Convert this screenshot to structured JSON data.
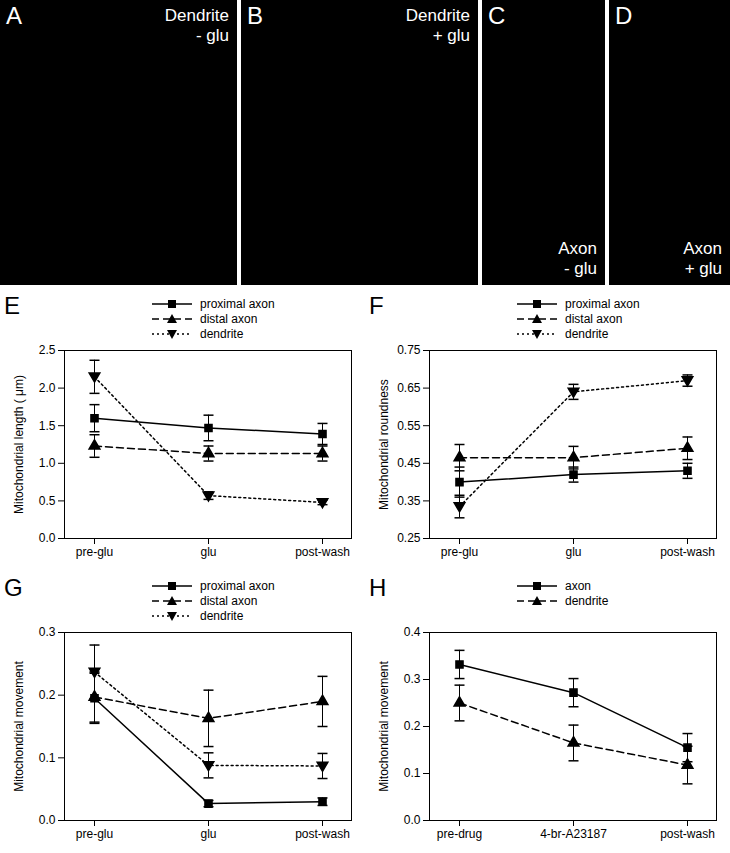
{
  "images": [
    {
      "letter": "A",
      "label": [
        "Dendrite",
        "- glu"
      ]
    },
    {
      "letter": "B",
      "label": [
        "Dendrite",
        "+ glu"
      ]
    },
    {
      "letter": "C",
      "label": [
        "Axon",
        "- glu"
      ]
    },
    {
      "letter": "D",
      "label": [
        "Axon",
        "+ glu"
      ]
    }
  ],
  "chart_data": [
    {
      "panel": "E",
      "type": "line",
      "categories": [
        "pre-glu",
        "glu",
        "post-wash"
      ],
      "y_label": "Mitochondrial length ( μm)",
      "ylim": [
        0,
        2.5
      ],
      "yticks": [
        {
          "value": 0,
          "label": "0.0"
        },
        {
          "value": 0.5,
          "label": "0.5"
        },
        {
          "value": 1,
          "label": "1.0"
        },
        {
          "value": 1.5,
          "label": "1.5"
        },
        {
          "value": 2,
          "label": "2.0"
        },
        {
          "value": 2.5,
          "label": "2.5"
        }
      ],
      "series": [
        {
          "name": "proximal axon",
          "color": "#000000",
          "marker": "square",
          "line_style": "solid",
          "values": [
            1.6,
            1.47,
            1.39
          ],
          "errors": [
            0.18,
            0.17,
            0.14
          ]
        },
        {
          "name": "distal axon",
          "color": "#000000",
          "marker": "triangle",
          "line_style": "dashed",
          "values": [
            1.23,
            1.13,
            1.13
          ],
          "errors": [
            0.15,
            0.1,
            0.1
          ]
        },
        {
          "name": "dendrite",
          "color": "#000000",
          "marker": "triangle-down",
          "line_style": "dotted",
          "values": [
            2.15,
            0.57,
            0.48
          ],
          "errors": [
            0.22,
            0.05,
            0.03
          ]
        }
      ]
    },
    {
      "panel": "F",
      "type": "line",
      "categories": [
        "pre-glu",
        "glu",
        "post-wash"
      ],
      "y_label": "Mitochondrial roundness",
      "ylim": [
        0.25,
        0.75
      ],
      "yticks": [
        0.25,
        0.35,
        0.45,
        0.55,
        0.65,
        0.75
      ],
      "series": [
        {
          "name": "proximal axon",
          "color": "#000000",
          "marker": "square",
          "line_style": "solid",
          "values": [
            0.4,
            0.42,
            0.43
          ],
          "errors": [
            0.04,
            0.02,
            0.02
          ]
        },
        {
          "name": "distal axon",
          "color": "#000000",
          "marker": "triangle",
          "line_style": "dashed",
          "values": [
            0.465,
            0.465,
            0.49
          ],
          "errors": [
            0.035,
            0.03,
            0.03
          ]
        },
        {
          "name": "dendrite",
          "color": "#000000",
          "marker": "triangle-down",
          "line_style": "dotted",
          "values": [
            0.335,
            0.64,
            0.67
          ],
          "errors": [
            0.03,
            0.02,
            0.015
          ]
        }
      ]
    },
    {
      "panel": "G",
      "type": "line",
      "categories": [
        "pre-glu",
        "glu",
        "post-wash"
      ],
      "y_label": "Mitochondrial movement",
      "ylim": [
        0,
        0.3
      ],
      "yticks": [
        {
          "value": 0,
          "label": "0.0"
        },
        0.1,
        0.2,
        0.3
      ],
      "series": [
        {
          "name": "proximal axon",
          "color": "#000000",
          "marker": "square",
          "line_style": "solid",
          "values": [
            0.195,
            0.027,
            0.03
          ],
          "errors": [
            0.04,
            0.005,
            0.006
          ]
        },
        {
          "name": "distal axon",
          "color": "#000000",
          "marker": "triangle",
          "line_style": "dashed",
          "values": [
            0.197,
            0.163,
            0.19
          ],
          "errors": [
            0.04,
            0.045,
            0.04
          ]
        },
        {
          "name": "dendrite",
          "color": "#000000",
          "marker": "triangle-down",
          "line_style": "dotted",
          "values": [
            0.237,
            0.088,
            0.087
          ],
          "errors": [
            0.043,
            0.02,
            0.02
          ]
        }
      ]
    },
    {
      "panel": "H",
      "type": "line",
      "categories": [
        "pre-drug",
        "4-br-A23187",
        "post-wash"
      ],
      "y_label": "Mitochondrial movement",
      "ylim": [
        0,
        0.4
      ],
      "yticks": [
        {
          "value": 0,
          "label": "0.0"
        },
        0.1,
        0.2,
        0.3,
        0.4
      ],
      "series": [
        {
          "name": "axon",
          "color": "#000000",
          "marker": "square",
          "line_style": "solid",
          "values": [
            0.332,
            0.272,
            0.155
          ],
          "errors": [
            0.03,
            0.03,
            0.03
          ]
        },
        {
          "name": "dendrite",
          "color": "#000000",
          "marker": "triangle",
          "line_style": "dashed",
          "values": [
            0.25,
            0.165,
            0.118
          ],
          "errors": [
            0.038,
            0.038,
            0.04
          ]
        }
      ]
    }
  ]
}
